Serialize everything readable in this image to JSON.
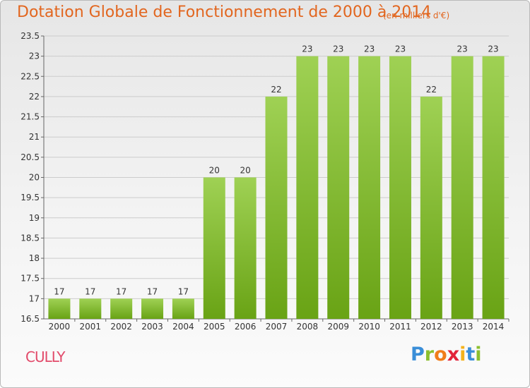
{
  "title": "Dotation Globale de Fonctionnement de 2000 à 2014",
  "subtitle": "(en milliers d'€)",
  "commune": "CULLY",
  "logo": {
    "letters": [
      "P",
      "r",
      "o",
      "x",
      "i",
      "t",
      "i"
    ],
    "colors": [
      "#3a8ed8",
      "#8bbf2e",
      "#f07d1a",
      "#e2233a",
      "#f5b21a",
      "#3a8ed8",
      "#8bbf2e"
    ]
  },
  "colors": {
    "bar_top": "#9fd154",
    "bar_bottom": "#69a315",
    "title": "#e2661f",
    "commune": "#e24a6a",
    "grid": "#cccccc"
  },
  "chart_data": {
    "type": "bar",
    "title": "Dotation Globale de Fonctionnement de 2000 à 2014",
    "subtitle": "(en milliers d'€)",
    "categories": [
      "2000",
      "2001",
      "2002",
      "2003",
      "2004",
      "2005",
      "2006",
      "2007",
      "2008",
      "2009",
      "2010",
      "2011",
      "2012",
      "2013",
      "2014"
    ],
    "values": [
      17,
      17,
      17,
      17,
      17,
      20,
      20,
      22,
      23,
      23,
      23,
      23,
      22,
      23,
      23
    ],
    "labels": [
      "17",
      "17",
      "17",
      "17",
      "17",
      "20",
      "20",
      "22",
      "23",
      "23",
      "23",
      "23",
      "22",
      "23",
      "23"
    ],
    "ylim": [
      16.5,
      23.5
    ],
    "yticks": [
      16.5,
      17,
      17.5,
      18,
      18.5,
      19,
      19.5,
      20,
      20.5,
      21,
      21.5,
      22,
      22.5,
      23,
      23.5
    ],
    "ytick_labels": [
      "16.5",
      "17",
      "17.5",
      "18",
      "18.5",
      "19",
      "19.5",
      "20",
      "20.5",
      "21",
      "21.5",
      "22",
      "22.5",
      "23",
      "23.5"
    ],
    "grid": true,
    "legend": "none"
  }
}
